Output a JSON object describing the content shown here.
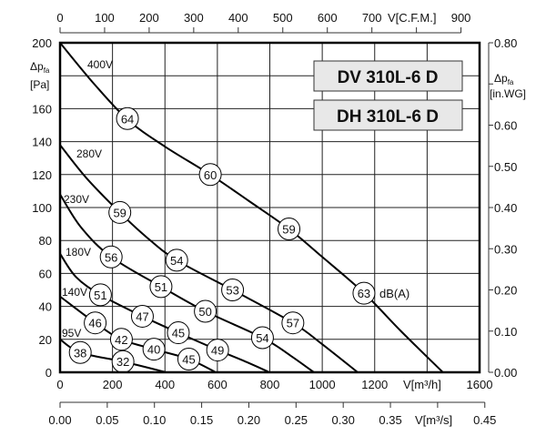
{
  "chart_data": {
    "type": "line",
    "models": [
      "DV 310L-6 D",
      "DH 310L-6 D"
    ],
    "x_axis": {
      "label": "V[m³/h]",
      "range": [
        0,
        1600
      ],
      "ticks": [
        0,
        200,
        400,
        600,
        800,
        1000,
        1200,
        1600
      ],
      "grid_step": 200
    },
    "y_axis": {
      "label": "Δp",
      "label_sub": "fa",
      "unit": "[Pa]",
      "range": [
        0,
        200
      ],
      "ticks": [
        0,
        20,
        40,
        60,
        80,
        100,
        120,
        140,
        160,
        200
      ],
      "grid_step": 20
    },
    "top_axis": {
      "label": "V[C.F.M.]",
      "range": [
        0,
        900
      ],
      "ticks": [
        0,
        100,
        200,
        300,
        400,
        500,
        600,
        700,
        900
      ]
    },
    "bottom_axis": {
      "label": "V[m³/s]",
      "range": [
        0,
        0.45
      ],
      "ticks": [
        "0.00",
        "0.05",
        "0.10",
        "0.15",
        "0.20",
        "0.25",
        "0.30",
        "0.35",
        "0.45"
      ]
    },
    "right_axis": {
      "label": "Δp",
      "label_sub": "fa",
      "unit": "[in.WG]",
      "range": [
        0,
        0.8
      ],
      "ticks": [
        "0.00",
        "0.10",
        "0.20",
        "0.30",
        "0.40",
        "0.50",
        "0.60",
        "0.80"
      ]
    },
    "grid": true,
    "noise_unit": "dB(A)",
    "series": [
      {
        "name": "400V",
        "points": [
          [
            0,
            200
          ],
          [
            130,
            175
          ],
          [
            260,
            153
          ],
          [
            400,
            137
          ],
          [
            573,
            120
          ],
          [
            720,
            104
          ],
          [
            873,
            87
          ],
          [
            1000,
            70
          ],
          [
            1160,
            48
          ],
          [
            1300,
            25
          ],
          [
            1460,
            0
          ]
        ],
        "noise": [
          {
            "x": 257,
            "y": 154,
            "db": 64
          },
          {
            "x": 573,
            "y": 120,
            "db": 60
          },
          {
            "x": 873,
            "y": 87,
            "db": 59
          },
          {
            "x": 1159,
            "y": 48,
            "db": 63
          }
        ]
      },
      {
        "name": "280V",
        "points": [
          [
            0,
            138
          ],
          [
            100,
            118
          ],
          [
            228,
            97
          ],
          [
            330,
            82
          ],
          [
            445,
            68
          ],
          [
            658,
            50
          ],
          [
            888,
            30
          ],
          [
            1000,
            17
          ],
          [
            1135,
            0
          ]
        ],
        "noise": [
          {
            "x": 228,
            "y": 97,
            "db": 59
          },
          {
            "x": 445,
            "y": 68,
            "db": 54
          },
          {
            "x": 658,
            "y": 50,
            "db": 53
          },
          {
            "x": 888,
            "y": 30,
            "db": 57
          }
        ]
      },
      {
        "name": "230V",
        "points": [
          [
            0,
            108
          ],
          [
            80,
            88
          ],
          [
            195,
            70
          ],
          [
            385,
            52
          ],
          [
            554,
            37
          ],
          [
            772,
            21
          ],
          [
            880,
            10
          ],
          [
            968,
            0
          ]
        ],
        "noise": [
          {
            "x": 195,
            "y": 70,
            "db": 56
          },
          {
            "x": 385,
            "y": 52,
            "db": 51
          },
          {
            "x": 554,
            "y": 37,
            "db": 50
          },
          {
            "x": 772,
            "y": 21,
            "db": 54
          }
        ]
      },
      {
        "name": "180V",
        "points": [
          [
            0,
            72
          ],
          [
            60,
            58
          ],
          [
            154,
            47
          ],
          [
            314,
            34
          ],
          [
            451,
            24
          ],
          [
            601,
            13.5
          ],
          [
            700,
            7
          ],
          [
            799,
            0
          ]
        ],
        "noise": [
          {
            "x": 154,
            "y": 47,
            "db": 51
          },
          {
            "x": 314,
            "y": 34,
            "db": 47
          },
          {
            "x": 451,
            "y": 24,
            "db": 45
          },
          {
            "x": 601,
            "y": 13.5,
            "db": 49
          }
        ]
      },
      {
        "name": "140V",
        "points": [
          [
            0,
            46
          ],
          [
            134,
            30
          ],
          [
            234,
            20
          ],
          [
            358,
            14
          ],
          [
            491,
            8
          ],
          [
            594,
            0
          ]
        ],
        "noise": [
          {
            "x": 134,
            "y": 30,
            "db": 46
          },
          {
            "x": 234,
            "y": 20,
            "db": 42
          },
          {
            "x": 358,
            "y": 14,
            "db": 40
          },
          {
            "x": 491,
            "y": 8,
            "db": 45
          }
        ]
      },
      {
        "name": "95V",
        "points": [
          [
            0,
            20
          ],
          [
            77,
            12
          ],
          [
            240,
            6.5
          ],
          [
            405,
            0
          ]
        ],
        "noise": [
          {
            "x": 77,
            "y": 12,
            "db": 38
          },
          {
            "x": 240,
            "y": 6.5,
            "db": 32
          }
        ]
      }
    ]
  }
}
